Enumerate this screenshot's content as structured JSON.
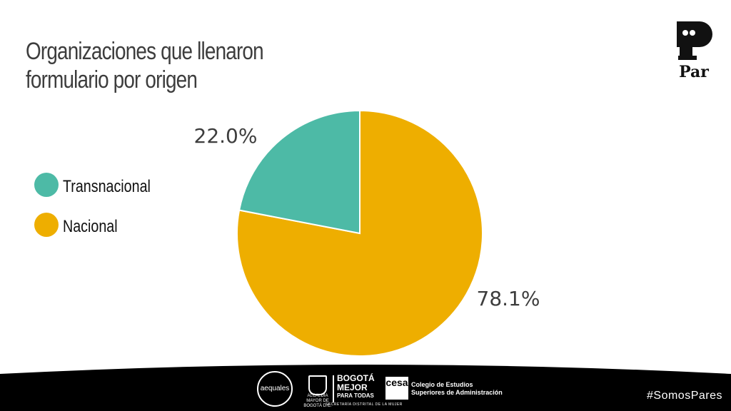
{
  "chart_data": {
    "type": "pie",
    "title": "Organizaciones que llenaron formulario por origen",
    "start_angle_deg": 0,
    "direction": "clockwise",
    "slices": [
      {
        "name": "Nacional",
        "value": 78.1,
        "label": "78.1%",
        "color": "#eeae00"
      },
      {
        "name": "Transnacional",
        "value": 22.0,
        "label": "22.0%",
        "color": "#4dbaa6"
      }
    ],
    "legend_placement": "left",
    "legend_order": [
      "Transnacional",
      "Nacional"
    ]
  },
  "brand": {
    "name": "Par"
  },
  "footer": {
    "sponsors": {
      "aequales": "aequales",
      "alcaldia": "ALCALDÍA MAYOR DE BOGOTÁ D.C.",
      "bogota_line1": "BOGOTÁ",
      "bogota_line2": "MEJOR",
      "bogota_line3": "PARA TODAS",
      "bogota_sub": "SECRETARÍA DISTRITAL DE LA MUJER",
      "cesa_mark": "cesa",
      "cesa_line1": "Colegio de Estudios",
      "cesa_line2": "Superiores de Administración"
    },
    "hashtag": "#SomosPares"
  },
  "colors": {
    "footer": "#000000",
    "text": "#3d3d3d"
  }
}
